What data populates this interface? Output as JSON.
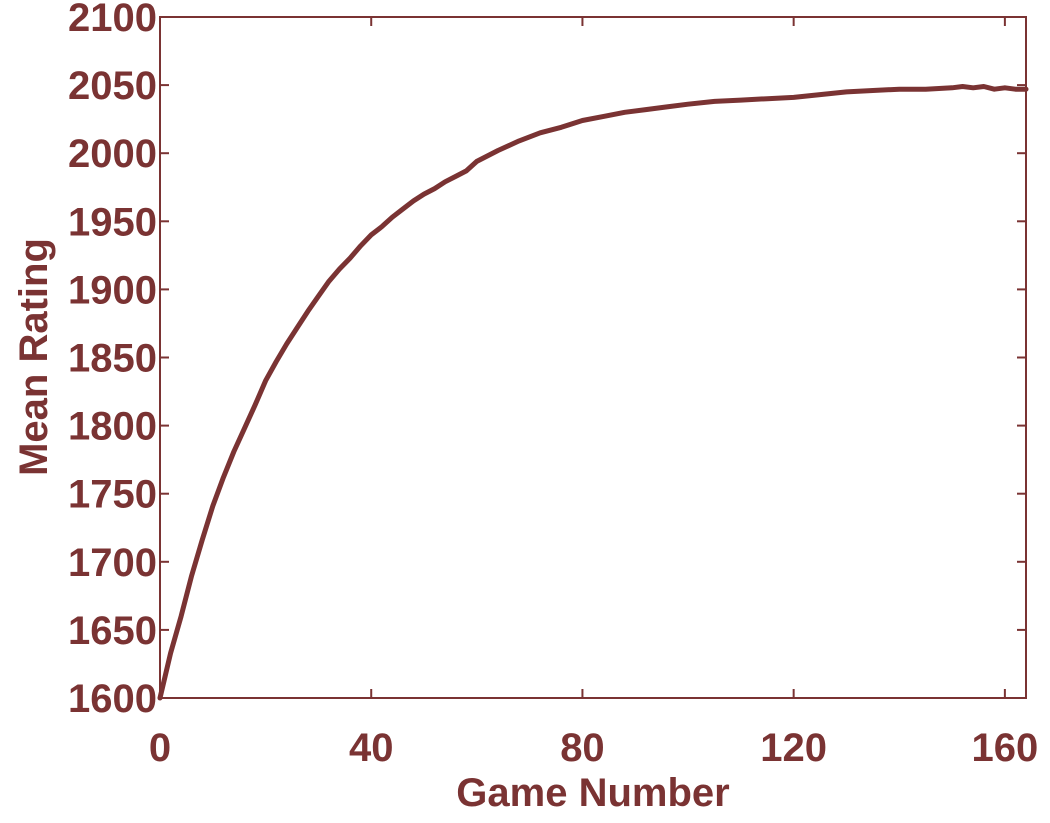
{
  "chart_data": {
    "type": "line",
    "title": "",
    "xlabel": "Game Number",
    "ylabel": "Mean Rating",
    "xlim": [
      0,
      164
    ],
    "ylim": [
      1600,
      2100
    ],
    "xticks": [
      0,
      40,
      80,
      120,
      160
    ],
    "xtick_labels": [
      "0",
      "40",
      "80",
      "120",
      "160"
    ],
    "yticks": [
      1600,
      1650,
      1700,
      1750,
      1800,
      1850,
      1900,
      1950,
      2000,
      2050,
      2100
    ],
    "ytick_labels": [
      "1600",
      "1650",
      "1700",
      "1750",
      "1800",
      "1850",
      "1900",
      "1950",
      "2000",
      "2050",
      "2100"
    ],
    "grid": false,
    "legend": "none",
    "color": "#7a3333",
    "series": [
      {
        "x": [
          0,
          2,
          4,
          6,
          8,
          10,
          12,
          14,
          16,
          18,
          20,
          22,
          24,
          26,
          28,
          30,
          32,
          34,
          36,
          38,
          40,
          42,
          44,
          46,
          48,
          50,
          52,
          54,
          56,
          58,
          60,
          64,
          68,
          72,
          76,
          80,
          84,
          88,
          92,
          96,
          100,
          105,
          110,
          115,
          120,
          125,
          130,
          135,
          140,
          145,
          150,
          152,
          154,
          156,
          158,
          160,
          162,
          164
        ],
        "values": [
          1600,
          1633,
          1660,
          1690,
          1716,
          1741,
          1762,
          1781,
          1798,
          1815,
          1833,
          1847,
          1860,
          1872,
          1884,
          1895,
          1906,
          1915,
          1923,
          1932,
          1940,
          1946,
          1953,
          1959,
          1965,
          1970,
          1974,
          1979,
          1983,
          1987,
          1994,
          2002,
          2009,
          2015,
          2019,
          2024,
          2027,
          2030,
          2032,
          2034,
          2036,
          2038,
          2039,
          2040,
          2041,
          2043,
          2045,
          2046,
          2047,
          2047,
          2048,
          2049,
          2048,
          2049,
          2047,
          2048,
          2047,
          2047
        ]
      }
    ]
  }
}
